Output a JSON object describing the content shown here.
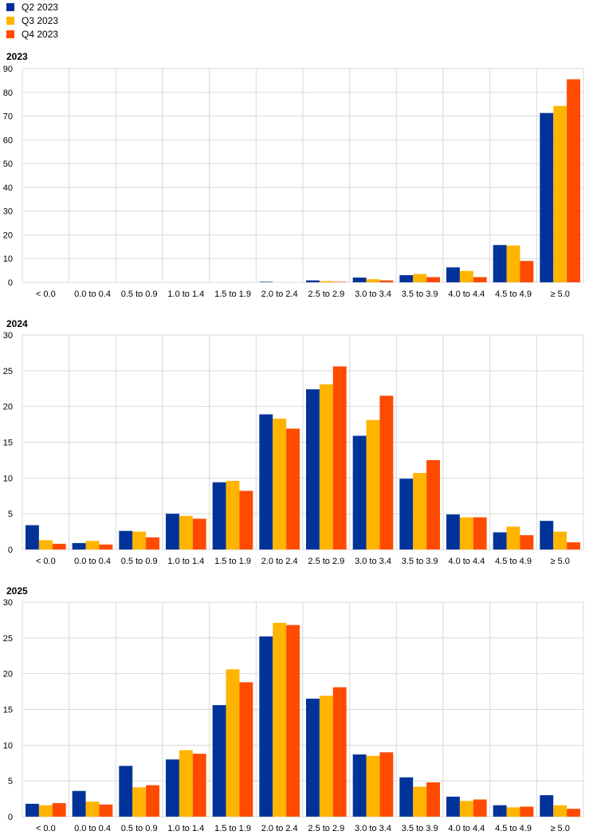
{
  "legend": [
    {
      "label": "Q2 2023",
      "color": "#003399"
    },
    {
      "label": "Q3 2023",
      "color": "#FFB400"
    },
    {
      "label": "Q4 2023",
      "color": "#FF4B00"
    }
  ],
  "chart_data": [
    {
      "type": "bar",
      "title": "2023",
      "categories": [
        "< 0.0",
        "0.0 to 0.4",
        "0.5 to 0.9",
        "1.0 to 1.4",
        "1.5 to 1.9",
        "2.0 to 2.4",
        "2.5 to 2.9",
        "3.0 to 3.4",
        "3.5 to 3.9",
        "4.0 to 4.4",
        "4.5 to 4.9",
        "≥ 5.0"
      ],
      "ylim": [
        0,
        90
      ],
      "yticks": [
        0,
        10,
        20,
        30,
        40,
        50,
        60,
        70,
        80,
        90
      ],
      "series": [
        {
          "name": "Q2 2023",
          "values": [
            0,
            0,
            0,
            0,
            0,
            0.2,
            0.8,
            2.0,
            3.0,
            6.3,
            15.7,
            71.3
          ]
        },
        {
          "name": "Q3 2023",
          "values": [
            0,
            0,
            0,
            0,
            0,
            0,
            0.5,
            1.3,
            3.5,
            4.8,
            15.5,
            74.3
          ]
        },
        {
          "name": "Q4 2023",
          "values": [
            0,
            0,
            0,
            0,
            0,
            0,
            0.2,
            0.8,
            2.2,
            2.2,
            9.0,
            85.5
          ]
        }
      ]
    },
    {
      "type": "bar",
      "title": "2024",
      "categories": [
        "< 0.0",
        "0.0 to 0.4",
        "0.5 to 0.9",
        "1.0 to 1.4",
        "1.5 to 1.9",
        "2.0 to 2.4",
        "2.5 to 2.9",
        "3.0 to 3.4",
        "3.5 to 3.9",
        "4.0 to 4.4",
        "4.5 to 4.9",
        "≥ 5.0"
      ],
      "ylim": [
        0,
        30
      ],
      "yticks": [
        0,
        5,
        10,
        15,
        20,
        25,
        30
      ],
      "series": [
        {
          "name": "Q2 2023",
          "values": [
            3.4,
            0.9,
            2.6,
            5.0,
            9.4,
            18.9,
            22.4,
            15.9,
            9.9,
            4.9,
            2.4,
            4.0
          ]
        },
        {
          "name": "Q3 2023",
          "values": [
            1.3,
            1.2,
            2.5,
            4.7,
            9.6,
            18.3,
            23.1,
            18.1,
            10.7,
            4.5,
            3.2,
            2.5
          ]
        },
        {
          "name": "Q4 2023",
          "values": [
            0.8,
            0.7,
            1.7,
            4.3,
            8.2,
            16.9,
            25.6,
            21.5,
            12.5,
            4.5,
            2.0,
            1.0
          ]
        }
      ]
    },
    {
      "type": "bar",
      "title": "2025",
      "categories": [
        "< 0.0",
        "0.0 to 0.4",
        "0.5 to 0.9",
        "1.0 to 1.4",
        "1.5 to 1.9",
        "2.0 to 2.4",
        "2.5 to 2.9",
        "3.0 to 3.4",
        "3.5 to 3.9",
        "4.0 to 4.4",
        "4.5 to 4.9",
        "≥ 5.0"
      ],
      "ylim": [
        0,
        30
      ],
      "yticks": [
        0,
        5,
        10,
        15,
        20,
        25,
        30
      ],
      "series": [
        {
          "name": "Q2 2023",
          "values": [
            1.8,
            3.6,
            7.1,
            8.0,
            15.6,
            25.2,
            16.5,
            8.7,
            5.5,
            2.8,
            1.6,
            3.0
          ]
        },
        {
          "name": "Q3 2023",
          "values": [
            1.6,
            2.1,
            4.1,
            9.3,
            20.6,
            27.1,
            16.9,
            8.5,
            4.2,
            2.2,
            1.3,
            1.6
          ]
        },
        {
          "name": "Q4 2023",
          "values": [
            1.9,
            1.7,
            4.4,
            8.8,
            18.8,
            26.8,
            18.1,
            9.0,
            4.8,
            2.4,
            1.4,
            1.1
          ]
        }
      ]
    }
  ]
}
